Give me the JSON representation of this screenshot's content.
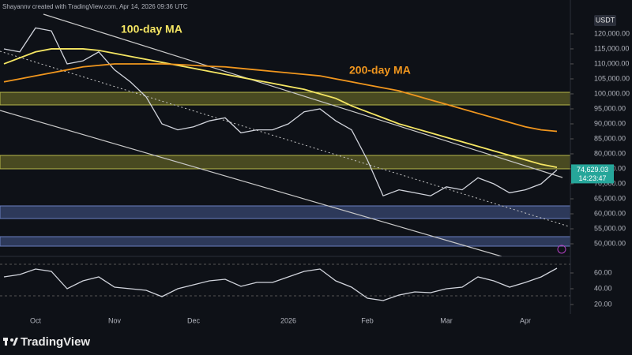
{
  "header": "Shayannv created with TradingView.com, Apr 14, 2026 09:36 UTC",
  "footer": "TradingView",
  "chart_data": [
    {
      "type": "line",
      "currency": "USDT",
      "categories": [
        null,
        null,
        "Oct",
        null,
        null,
        null,
        null,
        "Nov",
        null,
        null,
        null,
        null,
        "Dec",
        null,
        null,
        null,
        null,
        null,
        "2026",
        null,
        null,
        null,
        null,
        "Feb",
        null,
        null,
        null,
        null,
        "Mar",
        null,
        null,
        null,
        null,
        "Apr",
        null,
        null
      ],
      "series": [
        {
          "color": "#d1d4dc",
          "values": [
            115000,
            114000,
            122000,
            121000,
            110000,
            111000,
            114000,
            108000,
            104000,
            99000,
            90000,
            88000,
            89000,
            91000,
            92000,
            87000,
            88000,
            88000,
            90000,
            94000,
            95000,
            91000,
            88000,
            78000,
            66000,
            68000,
            67000,
            66000,
            69000,
            68000,
            72000,
            70000,
            67000,
            68000,
            70000,
            74629.03
          ],
          "value_labels": [
            null,
            null,
            null,
            null,
            null,
            null,
            null,
            null,
            null,
            null,
            null,
            null,
            null,
            null,
            null,
            null,
            null,
            null,
            null,
            null,
            null,
            null,
            null,
            null,
            null,
            null,
            null,
            null,
            null,
            null,
            null,
            null,
            null,
            null,
            null,
            "74,629.03"
          ]
        },
        {
          "name": "100-day MA",
          "color": "#f5e663",
          "values": [
            110000,
            112000,
            114000,
            115000,
            115000,
            115000,
            114500,
            113500,
            112500,
            111500,
            110500,
            109500,
            108500,
            107500,
            106500,
            105500,
            104500,
            103500,
            102500,
            101500,
            100000,
            98500,
            96000,
            94000,
            92000,
            90000,
            88500,
            87000,
            85500,
            84000,
            82500,
            81000,
            79500,
            78000,
            76500,
            75500
          ]
        },
        {
          "name": "200-day MA",
          "color": "#f0961e",
          "values": [
            104000,
            105000,
            106000,
            107000,
            108000,
            109000,
            109500,
            110000,
            110000,
            110000,
            110000,
            109800,
            109500,
            109200,
            109000,
            108500,
            108000,
            107500,
            107000,
            106500,
            106000,
            105000,
            104000,
            103000,
            102000,
            101000,
            99500,
            98000,
            96500,
            95000,
            93500,
            92000,
            90500,
            89000,
            88000,
            87500
          ]
        }
      ],
      "countdown": "14:23:47",
      "ylim": [
        45800,
        131300
      ],
      "yticks": [
        {
          "value": 50000,
          "label": "50,000.00"
        },
        {
          "value": 55000,
          "label": "55,000.00"
        },
        {
          "value": 60000,
          "label": "60,000.00"
        },
        {
          "value": 65000,
          "label": "65,000.00"
        },
        {
          "value": 70000,
          "label": "70,000.00"
        },
        {
          "value": 75000,
          "label": "75,000.00"
        },
        {
          "value": 80000,
          "label": "80,000.00"
        },
        {
          "value": 85000,
          "label": "85,000.00"
        },
        {
          "value": 90000,
          "label": "90,000.00"
        },
        {
          "value": 95000,
          "label": "95,000.00"
        },
        {
          "value": 100000,
          "label": "100,000.00"
        },
        {
          "value": 105000,
          "label": "105,000.00"
        },
        {
          "value": 110000,
          "label": "110,000.00"
        },
        {
          "value": 115000,
          "label": "115,000.00"
        },
        {
          "value": 120000,
          "label": "120,000.00"
        }
      ],
      "grid": false
    },
    {
      "type": "line",
      "series": [
        {
          "color": "#d1d4dc",
          "values": [
            55,
            58,
            65,
            62,
            40,
            50,
            55,
            42,
            40,
            38,
            30,
            40,
            45,
            50,
            52,
            43,
            48,
            48,
            55,
            62,
            65,
            50,
            42,
            28,
            25,
            32,
            36,
            35,
            40,
            42,
            55,
            50,
            42,
            48,
            55,
            66
          ]
        }
      ],
      "ylim": [
        8,
        78
      ],
      "yticks": [
        {
          "value": 20,
          "label": "20.00"
        },
        {
          "value": 40,
          "label": "40.00"
        },
        {
          "value": 60,
          "label": "60.00"
        }
      ],
      "grid": false
    }
  ]
}
